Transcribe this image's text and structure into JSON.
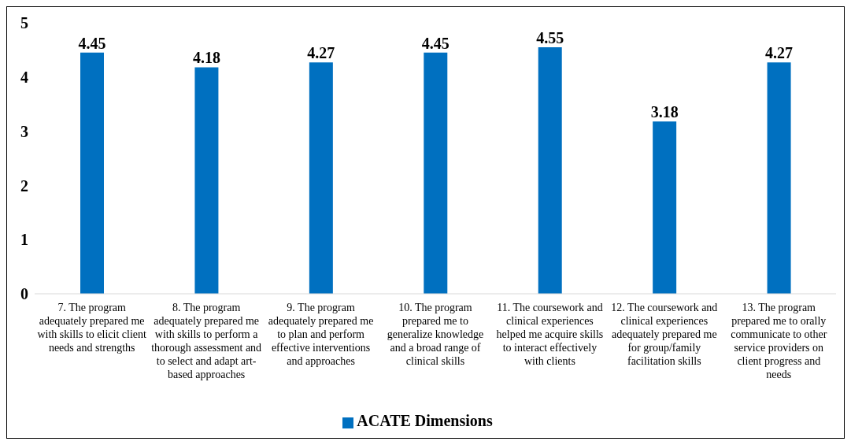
{
  "chart_data": {
    "type": "bar",
    "categories": [
      "7. The program adequately prepared me with skills to elicit client needs and strengths",
      "8. The program adequately prepared me with skills to perform a thorough assessment and to select and adapt art-based approaches",
      "9. The program adequately prepared me to plan and perform effective interventions and approaches",
      "10. The program prepared me to generalize knowledge and a broad range of clinical skills",
      "11. The coursework and clinical experiences helped me acquire skills to interact effectively with clients",
      "12. The coursework and clinical experiences adequately prepared me for group/family facilitation skills",
      "13. The program prepared me to orally communicate to other service providers on client progress and needs"
    ],
    "series": [
      {
        "name": "ACATE Dimensions",
        "color": "#0070c0",
        "values": [
          4.45,
          4.18,
          4.27,
          4.45,
          4.55,
          3.18,
          4.27
        ]
      }
    ],
    "ylim": [
      0,
      5
    ],
    "yticks": [
      0,
      1,
      2,
      3,
      4,
      5
    ],
    "grid": false,
    "legend": "bottom",
    "data_labels": true
  }
}
